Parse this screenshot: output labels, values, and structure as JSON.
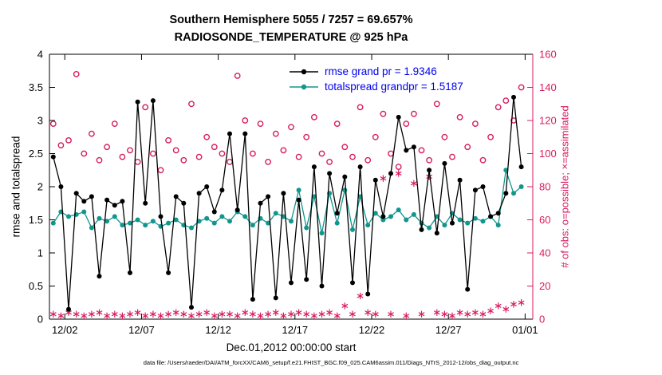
{
  "title": {
    "line1": "Southern Hemisphere 5055 / 7257 = 69.657%",
    "line2": "RADIOSONDE_TEMPERATURE @ 925 hPa"
  },
  "caption": "data file: /Users/raeder/DAI/ATM_forcXX/CAM6_setup/f.e21.FHIST_BGC.f09_025.CAM6assim.011/Diags_NTrS_2012-12/obs_diag_output.nc",
  "colors": {
    "rmse": "#000000",
    "totalspread": "#11968d",
    "obs": "#d81b60",
    "legend_text": "#0000ee"
  },
  "chart_data": {
    "type": "line",
    "title": "Southern Hemisphere 5055 / 7257 = 69.657%  |  RADIOSONDE_TEMPERATURE @ 925 hPa",
    "xlabel": "Dec.01,2012 00:00:00 start",
    "ylabel_left": "rmse and totalspread",
    "ylabel_right": "# of obs: o=possible; ×=assimilated",
    "xlim": [
      0,
      31.5
    ],
    "ylim_left": [
      0,
      4
    ],
    "ylim_right": [
      0,
      160
    ],
    "x_start_days": 0.25,
    "x_step_days": 0.5,
    "grid": false,
    "legend_position": "upper-center-inside",
    "xticks": [
      {
        "pos": 1,
        "label": "12/02"
      },
      {
        "pos": 6,
        "label": "12/07"
      },
      {
        "pos": 11,
        "label": "12/12"
      },
      {
        "pos": 16,
        "label": "12/17"
      },
      {
        "pos": 21,
        "label": "12/22"
      },
      {
        "pos": 26,
        "label": "12/27"
      },
      {
        "pos": 31,
        "label": "01/01"
      }
    ],
    "yticks_left": [
      0,
      0.5,
      1,
      1.5,
      2,
      2.5,
      3,
      3.5,
      4
    ],
    "yticks_right": [
      0,
      20,
      40,
      60,
      80,
      100,
      120,
      140,
      160
    ],
    "legend": [
      {
        "label": "rmse grand pr = 1.9346",
        "color": "#000000"
      },
      {
        "label": "totalspread grandpr = 1.5187",
        "color": "#11968d"
      }
    ],
    "series": [
      {
        "name": "rmse",
        "axis": "left",
        "line": true,
        "marker": "dot",
        "color": "#000000",
        "values": [
          2.45,
          2.0,
          0.15,
          1.9,
          1.78,
          1.85,
          0.65,
          1.8,
          1.72,
          1.78,
          0.7,
          3.28,
          1.75,
          3.3,
          1.55,
          0.7,
          1.85,
          1.75,
          0.18,
          1.9,
          2.0,
          1.62,
          1.95,
          2.8,
          1.65,
          2.8,
          0.3,
          1.75,
          1.85,
          0.32,
          1.9,
          0.55,
          1.8,
          0.6,
          2.3,
          0.5,
          2.2,
          1.6,
          2.15,
          0.55,
          2.3,
          0.38,
          2.1,
          1.55,
          2.2,
          3.05,
          2.55,
          2.6,
          1.35,
          2.25,
          1.3,
          2.35,
          1.45,
          2.1,
          0.45,
          1.95,
          2.0,
          1.55,
          1.6,
          1.9,
          3.35,
          2.3
        ]
      },
      {
        "name": "totalspread",
        "axis": "left",
        "line": true,
        "marker": "dot",
        "color": "#11968d",
        "values": [
          1.45,
          1.62,
          1.55,
          1.58,
          1.62,
          1.38,
          1.52,
          1.48,
          1.55,
          1.42,
          1.45,
          1.5,
          1.42,
          1.48,
          1.4,
          1.45,
          1.5,
          1.42,
          1.38,
          1.48,
          1.52,
          1.45,
          1.55,
          1.48,
          1.62,
          1.55,
          1.42,
          1.52,
          1.45,
          1.6,
          1.55,
          1.48,
          1.95,
          1.38,
          1.85,
          1.3,
          1.9,
          1.45,
          1.95,
          1.35,
          1.85,
          1.42,
          1.6,
          1.5,
          1.55,
          1.65,
          1.5,
          1.58,
          1.45,
          1.38,
          1.55,
          1.42,
          1.6,
          1.5,
          1.45,
          1.52,
          1.48,
          1.55,
          1.42,
          2.25,
          1.9,
          2.0
        ]
      },
      {
        "name": "possible_obs",
        "axis": "right",
        "line": false,
        "marker": "circle",
        "color": "#d81b60",
        "values": [
          118,
          105,
          108,
          148,
          100,
          112,
          96,
          104,
          118,
          98,
          102,
          95,
          128,
          100,
          90,
          108,
          102,
          96,
          130,
          98,
          110,
          104,
          100,
          95,
          147,
          120,
          100,
          118,
          95,
          112,
          102,
          116,
          98,
          110,
          122,
          100,
          95,
          118,
          104,
          98,
          128,
          96,
          110,
          124,
          100,
          92,
          118,
          124,
          102,
          96,
          130,
          110,
          98,
          122,
          104,
          118,
          96,
          110,
          128,
          132,
          120,
          140
        ]
      },
      {
        "name": "assimilated_obs",
        "axis": "right",
        "line": false,
        "marker": "asterisk",
        "color": "#d81b60",
        "values": [
          3,
          2,
          4,
          3,
          2,
          3,
          4,
          2,
          3,
          2,
          3,
          4,
          2,
          3,
          2,
          3,
          4,
          3,
          2,
          3,
          4,
          2,
          3,
          3,
          2,
          4,
          3,
          2,
          3,
          4,
          2,
          3,
          4,
          3,
          2,
          3,
          4,
          2,
          8,
          3,
          14,
          4,
          3,
          85,
          3,
          88,
          2,
          82,
          3,
          86,
          4,
          3,
          2,
          4,
          3,
          4,
          3,
          5,
          8,
          6,
          9,
          10
        ]
      }
    ]
  }
}
